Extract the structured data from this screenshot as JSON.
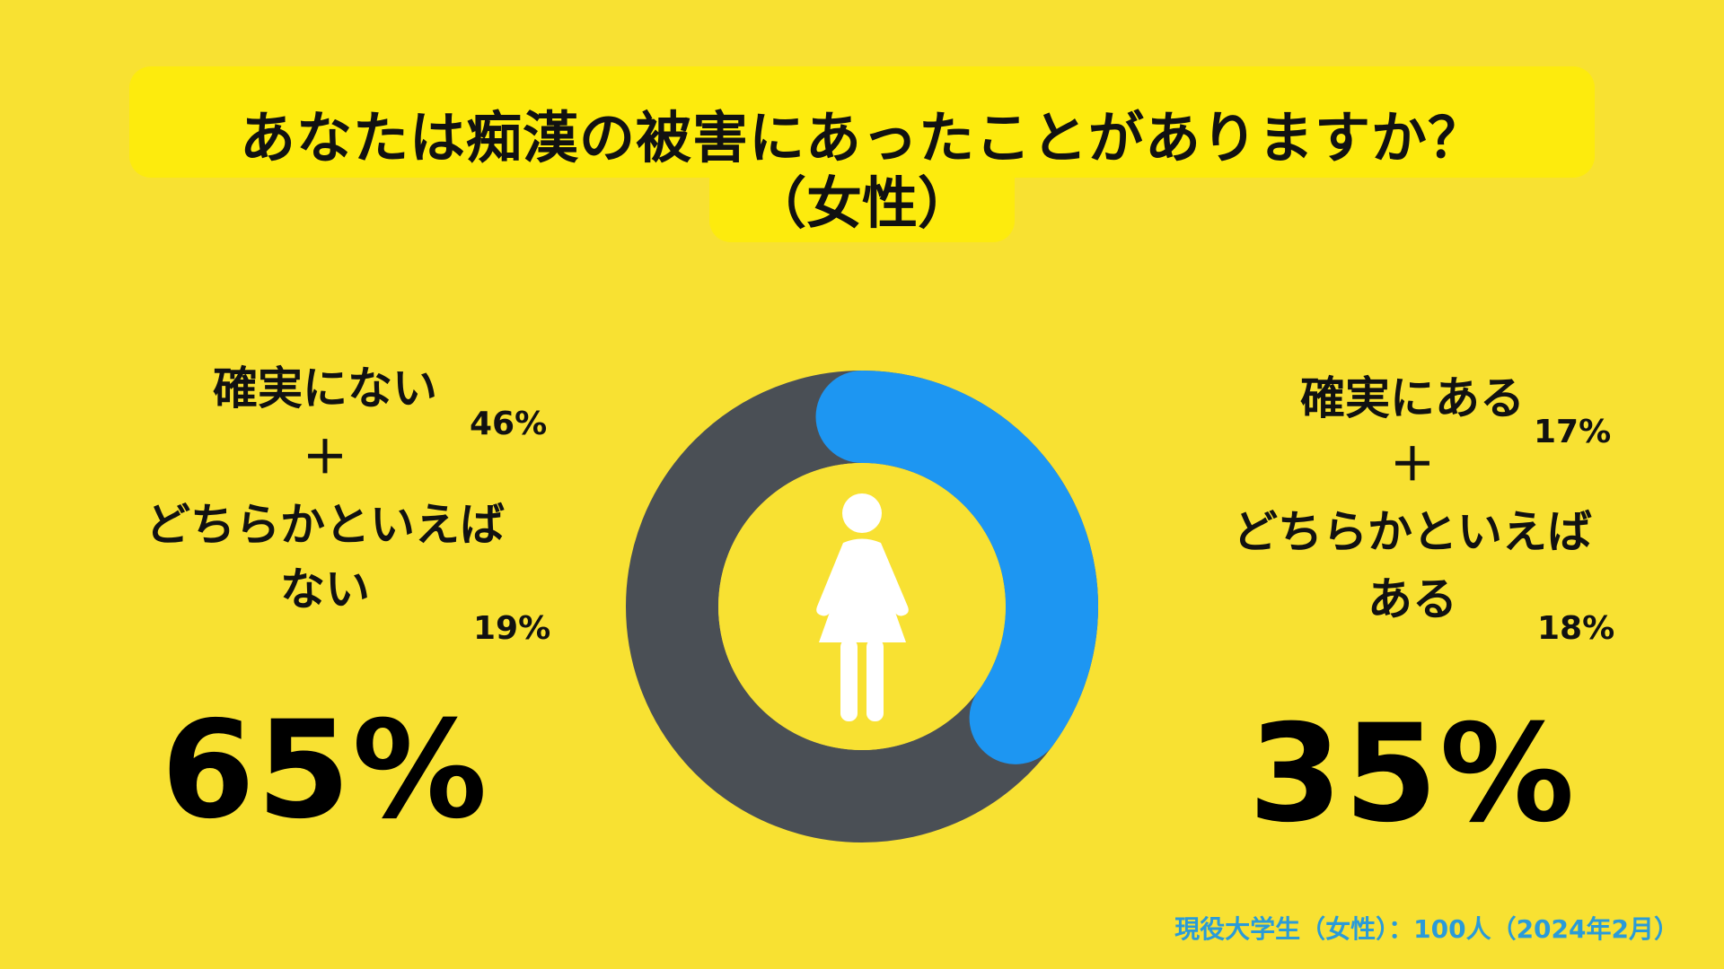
{
  "title": {
    "line1": "あなたは痴漢の被害にあったことがありますか？",
    "line2": "（女性）"
  },
  "left": {
    "label_lines": [
      "確実にない",
      "＋",
      "どちらかといえば",
      "ない"
    ],
    "pct_top": "46%",
    "pct_bottom": "19%",
    "total": "65%"
  },
  "right": {
    "label_lines": [
      "確実にある",
      "＋",
      "どちらかといえば",
      "ある"
    ],
    "pct_top": "17%",
    "pct_bottom": "18%",
    "total": "35%"
  },
  "footer": "現役大学生（女性）：100人（2024年2月）",
  "center_icon": "woman-icon",
  "colors": {
    "background": "#f8e132",
    "title_box": "#fdeb0d",
    "no_segment": "#4a4f55",
    "yes_segment": "#1d96f2",
    "inner_circle": "#f8e132",
    "icon": "#ffffff",
    "footer_text": "#2a9bd8"
  },
  "chart_data": {
    "type": "pie",
    "variant": "donut",
    "categories": [
      "確実にない＋どちらかといえばない",
      "確実にある＋どちらかといえばある"
    ],
    "values": [
      65,
      35
    ],
    "sub_values": {
      "確実にない": 46,
      "どちらかといえばない": 19,
      "確実にある": 17,
      "どちらかといえばある": 18
    },
    "title": "あなたは痴漢の被害にあったことがありますか？（女性）",
    "legend": "none"
  }
}
